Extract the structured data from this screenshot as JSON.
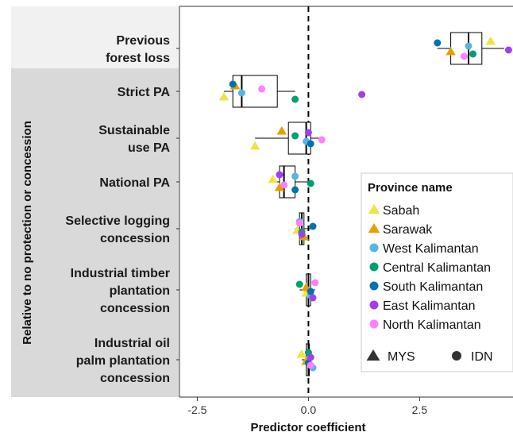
{
  "chart_data": {
    "type": "box-and-scatter",
    "xlabel": "Predictor coefficient",
    "xlim": [
      -2.9,
      4.6
    ],
    "xticks": [
      -2.5,
      0.0,
      2.5
    ],
    "xtick_labels": [
      "-2.5",
      "0.0",
      "2.5"
    ],
    "reference_line_x": 0,
    "group_strip": "Relative to no protection or concession",
    "categories": [
      {
        "id": "prev",
        "label_lines": [
          "Previous",
          "forest loss"
        ],
        "grouped": false,
        "box": {
          "q1": 3.2,
          "median": 3.6,
          "q3": 3.9,
          "whisker_low": 2.9,
          "whisker_high": 4.4
        }
      },
      {
        "id": "strict",
        "label_lines": [
          "Strict PA"
        ],
        "grouped": true,
        "box": {
          "q1": -1.7,
          "median": -1.5,
          "q3": -0.7,
          "whisker_low": -1.9,
          "whisker_high": -0.3
        }
      },
      {
        "id": "sust",
        "label_lines": [
          "Sustainable",
          "use PA"
        ],
        "grouped": true,
        "box": {
          "q1": -0.45,
          "median": -0.05,
          "q3": 0.05,
          "whisker_low": -1.2,
          "whisker_high": 0.3
        }
      },
      {
        "id": "nat",
        "label_lines": [
          "National PA"
        ],
        "grouped": true,
        "box": {
          "q1": -0.65,
          "median": -0.55,
          "q3": -0.3,
          "whisker_low": -0.8,
          "whisker_high": 0.05
        }
      },
      {
        "id": "sel",
        "label_lines": [
          "Selective logging",
          "concession"
        ],
        "grouped": true,
        "box": {
          "q1": -0.2,
          "median": -0.15,
          "q3": -0.1,
          "whisker_low": -0.3,
          "whisker_high": 0.1
        }
      },
      {
        "id": "itp",
        "label_lines": [
          "Industrial timber",
          "plantation",
          "concession"
        ],
        "grouped": true,
        "box": {
          "q1": -0.05,
          "median": 0.0,
          "q3": 0.05,
          "whisker_low": -0.2,
          "whisker_high": 0.15
        }
      },
      {
        "id": "iop",
        "label_lines": [
          "Industrial oil",
          "palm plantation",
          "concession"
        ],
        "grouped": true,
        "box": {
          "q1": -0.05,
          "median": 0.0,
          "q3": 0.02,
          "whisker_low": -0.15,
          "whisker_high": 0.1
        }
      }
    ],
    "series": [
      {
        "name": "Sabah",
        "color": "#f0e442",
        "shape": "triangle",
        "values": [
          4.1,
          -1.9,
          -1.2,
          -0.8,
          -0.25,
          -0.05,
          -0.15
        ]
      },
      {
        "name": "Sarawak",
        "color": "#e69f00",
        "shape": "triangle",
        "values": [
          3.2,
          -1.65,
          -0.6,
          -0.65,
          -0.1,
          -0.05,
          -0.05
        ]
      },
      {
        "name": "West Kalimantan",
        "color": "#56b4e9",
        "shape": "circle",
        "values": [
          3.6,
          -1.5,
          -0.05,
          -0.3,
          -0.2,
          0.05,
          0.1
        ]
      },
      {
        "name": "Central Kalimantan",
        "color": "#009e73",
        "shape": "circle",
        "values": [
          3.7,
          -0.3,
          -0.3,
          0.05,
          -0.15,
          -0.2,
          0.0
        ]
      },
      {
        "name": "South Kalimantan",
        "color": "#0072b2",
        "shape": "circle",
        "values": [
          2.9,
          -1.7,
          0.05,
          -0.3,
          0.1,
          0.05,
          0.0
        ]
      },
      {
        "name": "East Kalimantan",
        "color": "#a03ff0",
        "shape": "circle",
        "values": [
          4.5,
          1.2,
          0.0,
          -0.65,
          -0.15,
          0.1,
          0.05
        ]
      },
      {
        "name": "North Kalimantan",
        "color": "#ff80ff",
        "shape": "circle",
        "values": [
          3.5,
          -1.05,
          0.3,
          -0.55,
          -0.2,
          0.15,
          0.05
        ]
      }
    ],
    "legend": {
      "title": "Province name",
      "position": "right-inside",
      "shape_legend": [
        {
          "label": "MYS",
          "shape": "triangle"
        },
        {
          "label": "IDN",
          "shape": "circle"
        }
      ]
    },
    "grid": false
  }
}
